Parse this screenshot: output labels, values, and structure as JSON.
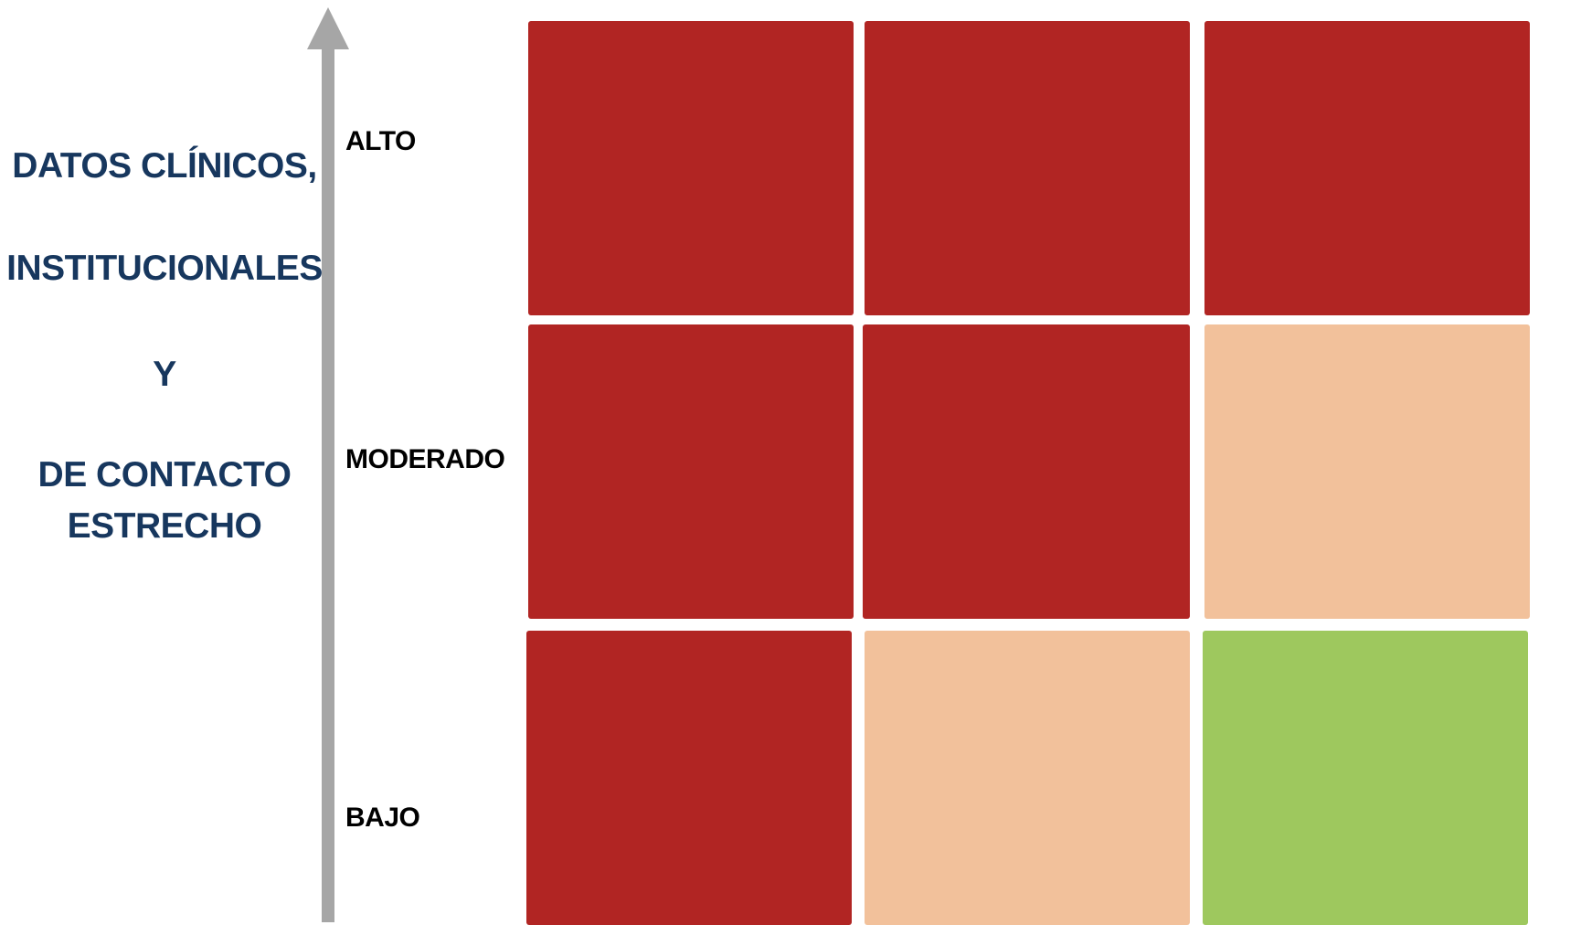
{
  "axis": {
    "title_lines": [
      "DATOS CLÍNICOS,",
      "INSTITUCIONALES",
      "Y",
      "DE CONTACTO",
      "ESTRECHO"
    ],
    "arrow_color": "#a6a6a6",
    "title_color": "#17375e",
    "levels": [
      "ALTO",
      "MODERADO",
      "BAJO"
    ]
  },
  "matrix": {
    "colors": {
      "red": "#b12523",
      "peach": "#f2c19b",
      "green": "#9ec85e"
    },
    "rows": [
      {
        "level": "ALTO",
        "cells": [
          "red",
          "red",
          "red"
        ]
      },
      {
        "level": "MODERADO",
        "cells": [
          "red",
          "red",
          "peach"
        ]
      },
      {
        "level": "BAJO",
        "cells": [
          "red",
          "peach",
          "green"
        ]
      }
    ]
  }
}
